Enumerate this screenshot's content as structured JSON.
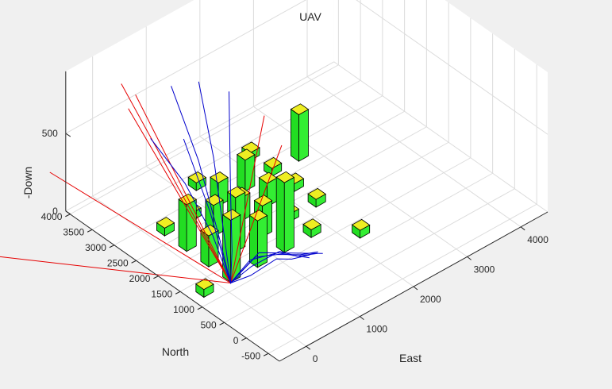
{
  "chart_data": {
    "type": "3d-line",
    "title": "UAV",
    "xlabel": "North",
    "ylabel": "East",
    "zlabel": "-Down",
    "north_ticks": [
      "4000",
      "3500",
      "3000",
      "2500",
      "2000",
      "1500",
      "1000",
      "500",
      "0",
      "-500"
    ],
    "east_ticks": [
      "0",
      "1000",
      "2000",
      "3000",
      "4000"
    ],
    "down_ticks": [
      "0",
      "500"
    ],
    "north_range": [
      -750,
      4100
    ],
    "east_range": [
      -500,
      4500
    ],
    "down_range": [
      0,
      900
    ],
    "grid": true,
    "buildings": [
      {
        "n": 1250,
        "e": -250,
        "h": 50
      },
      {
        "n": 1250,
        "e": 250,
        "h": 400
      },
      {
        "n": 1250,
        "e": 750,
        "h": 300
      },
      {
        "n": 1250,
        "e": 1250,
        "h": 450
      },
      {
        "n": 1250,
        "e": 1750,
        "h": 50
      },
      {
        "n": 1750,
        "e": 250,
        "h": 200
      },
      {
        "n": 1750,
        "e": 750,
        "h": 350
      },
      {
        "n": 1750,
        "e": 1250,
        "h": 200
      },
      {
        "n": 1750,
        "e": 1750,
        "h": 50
      },
      {
        "n": 1750,
        "e": 2250,
        "h": 50
      },
      {
        "n": 2250,
        "e": 250,
        "h": 300
      },
      {
        "n": 2250,
        "e": 750,
        "h": 200
      },
      {
        "n": 2250,
        "e": 1250,
        "h": 150
      },
      {
        "n": 2250,
        "e": 1750,
        "h": 150
      },
      {
        "n": 2250,
        "e": 2250,
        "h": 50
      },
      {
        "n": 2750,
        "e": 250,
        "h": 50
      },
      {
        "n": 2750,
        "e": 750,
        "h": 50
      },
      {
        "n": 2750,
        "e": 1250,
        "h": 150
      },
      {
        "n": 2750,
        "e": 1750,
        "h": 200
      },
      {
        "n": 2750,
        "e": 2250,
        "h": 50
      },
      {
        "n": 2750,
        "e": 2750,
        "h": 300
      },
      {
        "n": 3250,
        "e": 1250,
        "h": 50
      },
      {
        "n": 3250,
        "e": 2250,
        "h": 50
      },
      {
        "n": 750,
        "e": 2250,
        "h": 50
      }
    ],
    "series": [
      {
        "color": "#e60000",
        "points": [
          [
            3650,
            -2300,
            150
          ],
          [
            1150,
            150,
            0
          ],
          [
            2150,
            1600,
            600
          ]
        ]
      },
      {
        "color": "#e60000",
        "points": [
          [
            3000,
            -1700,
            700
          ],
          [
            1150,
            150,
            0
          ]
        ]
      },
      {
        "color": "#e60000",
        "points": [
          [
            2700,
            -350,
            1000
          ],
          [
            1150,
            150,
            0
          ],
          [
            2000,
            1800,
            400
          ]
        ]
      },
      {
        "color": "#e60000",
        "points": [
          [
            2800,
            -400,
            900
          ],
          [
            1150,
            150,
            0
          ]
        ]
      },
      {
        "color": "#e60000",
        "points": [
          [
            2900,
            -450,
            1050
          ],
          [
            1150,
            150,
            0
          ]
        ]
      },
      {
        "color": "#0000cc",
        "points": [
          [
            2600,
            -150,
            700
          ],
          [
            2000,
            0,
            500
          ],
          [
            1500,
            100,
            250
          ],
          [
            1150,
            150,
            0
          ],
          [
            1000,
            400,
            30
          ],
          [
            900,
            800,
            80
          ],
          [
            800,
            1000,
            60
          ],
          [
            750,
            1300,
            40
          ]
        ]
      },
      {
        "color": "#0000cc",
        "points": [
          [
            2500,
            150,
            1000
          ],
          [
            2000,
            250,
            600
          ],
          [
            1500,
            200,
            250
          ],
          [
            1150,
            150,
            0
          ],
          [
            1100,
            500,
            50
          ],
          [
            950,
            900,
            100
          ],
          [
            800,
            1100,
            60
          ],
          [
            700,
            1400,
            40
          ]
        ]
      },
      {
        "color": "#0000cc",
        "points": [
          [
            2300,
            500,
            1000
          ],
          [
            1900,
            450,
            600
          ],
          [
            1400,
            250,
            200
          ],
          [
            1150,
            150,
            0
          ],
          [
            1200,
            650,
            60
          ],
          [
            1050,
            950,
            50
          ],
          [
            850,
            1200,
            40
          ],
          [
            750,
            1450,
            30
          ]
        ]
      },
      {
        "color": "#0000cc",
        "points": [
          [
            2100,
            900,
            900
          ],
          [
            1700,
            600,
            400
          ],
          [
            1300,
            300,
            150
          ],
          [
            1150,
            150,
            0
          ],
          [
            1300,
            800,
            40
          ],
          [
            1000,
            1150,
            30
          ],
          [
            700,
            1500,
            20
          ]
        ]
      },
      {
        "color": "#0000cc",
        "points": [
          [
            2400,
            300,
            650
          ],
          [
            1800,
            300,
            300
          ],
          [
            1150,
            150,
            0
          ],
          [
            1200,
            550,
            60
          ],
          [
            1000,
            900,
            80
          ],
          [
            700,
            1250,
            40
          ]
        ]
      }
    ]
  }
}
